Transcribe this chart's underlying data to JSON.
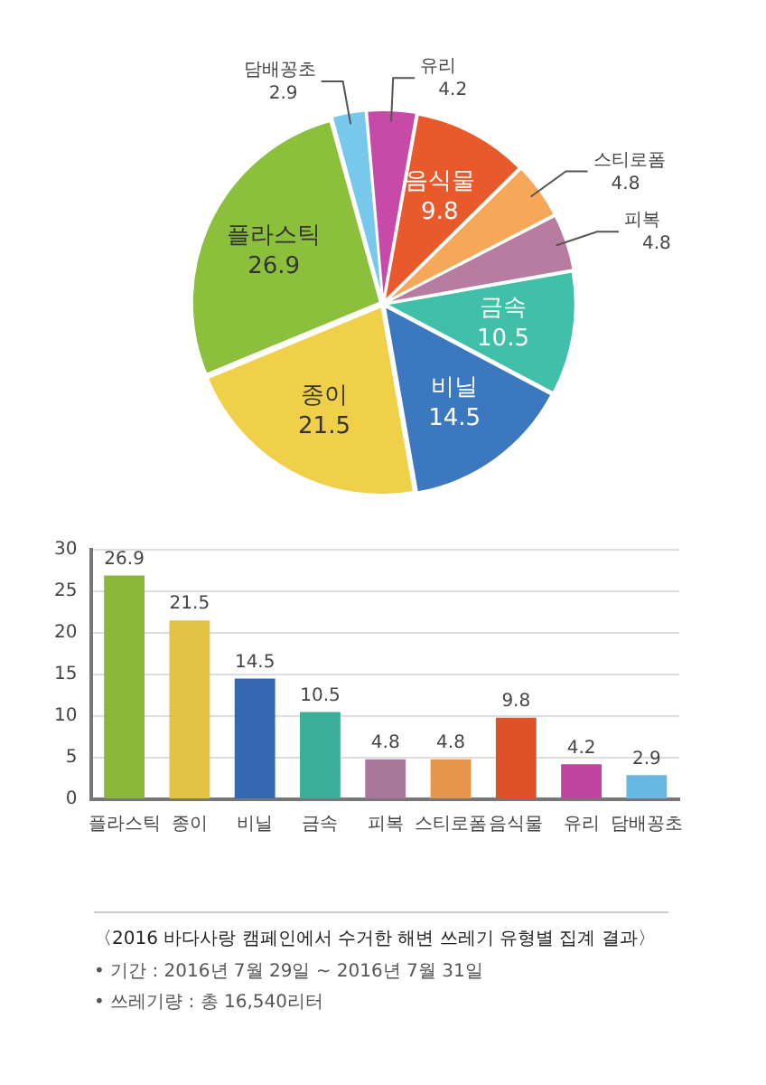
{
  "chart_data": [
    {
      "type": "pie",
      "categories": [
        "유리",
        "음식물",
        "스티로폼",
        "피복",
        "금속",
        "비닐",
        "종이",
        "플라스틱",
        "담배꽁초"
      ],
      "values": [
        4.2,
        9.8,
        4.8,
        4.8,
        10.5,
        14.5,
        21.5,
        26.9,
        2.9
      ],
      "colors": [
        "#c84aa8",
        "#e85a2c",
        "#f4a858",
        "#b87ca0",
        "#40c0a8",
        "#3c78c0",
        "#f0d048",
        "#8cc03c",
        "#78c8ec"
      ],
      "data_labels": true
    },
    {
      "type": "bar",
      "categories": [
        "플라스틱",
        "종이",
        "비닐",
        "금속",
        "피복",
        "스티로폼",
        "음식물",
        "유리",
        "담배꽁초"
      ],
      "values": [
        26.9,
        21.5,
        14.5,
        10.5,
        4.8,
        4.8,
        9.8,
        4.2,
        2.9
      ],
      "colors": [
        "#8ab838",
        "#e2c244",
        "#3468b0",
        "#3aae96",
        "#a8789a",
        "#e8964c",
        "#dc5226",
        "#c0449e",
        "#68b8e4"
      ],
      "ylim": [
        0,
        30
      ],
      "yticks": [
        0,
        5,
        10,
        15,
        20,
        25,
        30
      ],
      "grid": "y",
      "data_labels": true,
      "annotations": [
        "〈2016 바다사랑 캠페인에서 수거한 해변 쓰레기 유형별 집계 결과〉",
        "• 기간 : 2016년 7월 29일 ~ 2016년 7월 31일",
        "• 쓰레기량 : 총 16,540리터"
      ]
    }
  ]
}
